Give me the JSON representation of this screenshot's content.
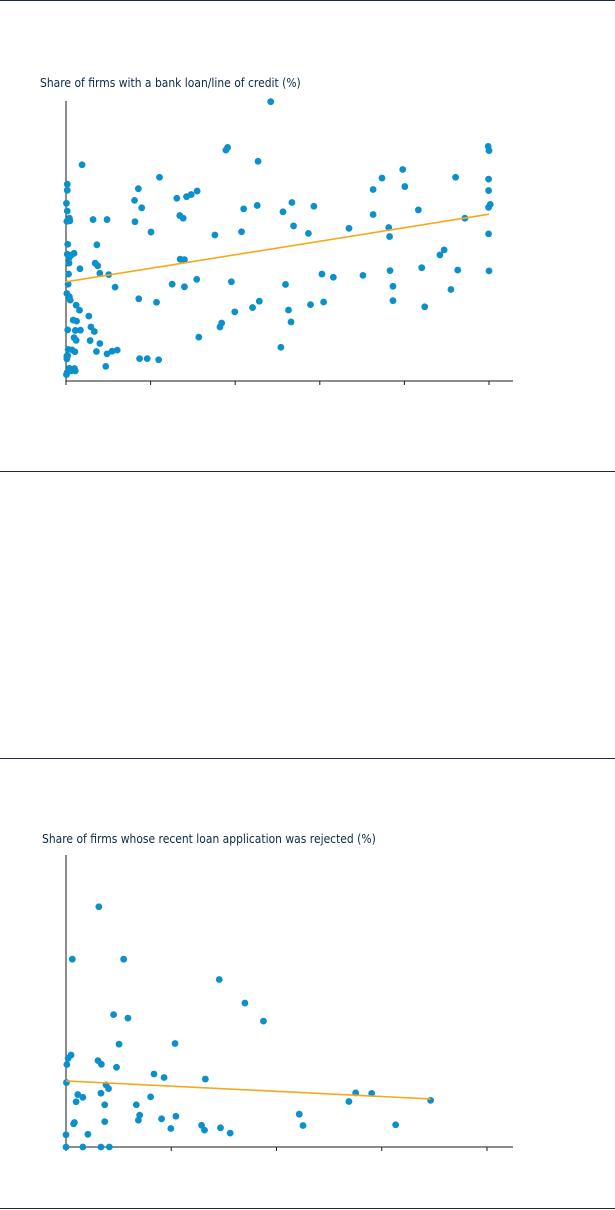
{
  "colors": {
    "point": "#0b90cc",
    "trend": "#f5a81c",
    "axis": "#1a1a1a",
    "rule": "#1f2d3d",
    "title": "#0b2a4a"
  },
  "chart_data": [
    {
      "type": "scatter",
      "title": "Share of firms with a bank loan/line of credit (%)",
      "xlabel": "",
      "ylabel": "",
      "xlim": [
        0,
        100
      ],
      "ylim": [
        0,
        100
      ],
      "grid": false,
      "x_ticks": [
        0,
        20,
        40,
        60,
        80,
        100
      ],
      "points": [
        [
          0.3,
          74
        ],
        [
          0.3,
          71.7
        ],
        [
          0.1,
          66.8
        ],
        [
          0.3,
          63.9
        ],
        [
          0.2,
          60
        ],
        [
          0.8,
          61.2
        ],
        [
          0.9,
          60.2
        ],
        [
          0.4,
          51.4
        ],
        [
          0.3,
          47.7
        ],
        [
          0.7,
          46.2
        ],
        [
          1.2,
          47.3
        ],
        [
          1.9,
          48
        ],
        [
          0.7,
          44.3
        ],
        [
          0.6,
          40.2
        ],
        [
          0.5,
          36.4
        ],
        [
          0.2,
          32.9
        ],
        [
          0.8,
          31.7
        ],
        [
          1,
          30.4
        ],
        [
          2.4,
          28.5
        ],
        [
          3.2,
          26.6
        ],
        [
          1.7,
          22.9
        ],
        [
          2.5,
          22.5
        ],
        [
          0.4,
          19.2
        ],
        [
          2.2,
          19
        ],
        [
          3.4,
          19.1
        ],
        [
          1.9,
          16.3
        ],
        [
          2.4,
          15.3
        ],
        [
          0.5,
          11.9
        ],
        [
          1.4,
          11.7
        ],
        [
          2.1,
          11
        ],
        [
          0.4,
          9.5
        ],
        [
          0.2,
          9.4
        ],
        [
          0.2,
          8.3
        ],
        [
          0.8,
          4.8
        ],
        [
          2,
          4.7
        ],
        [
          1.2,
          3.8
        ],
        [
          2.2,
          3.8
        ],
        [
          0.3,
          3.3
        ],
        [
          0.1,
          2.4
        ],
        [
          3.8,
          81.3
        ],
        [
          3.3,
          42.2
        ],
        [
          6.4,
          60.7
        ],
        [
          9.7,
          60.7
        ],
        [
          7.3,
          51.2
        ],
        [
          6.9,
          44.3
        ],
        [
          7.5,
          43.3
        ],
        [
          8,
          40.5
        ],
        [
          10.1,
          40
        ],
        [
          11.6,
          35.3
        ],
        [
          5.4,
          24.4
        ],
        [
          5.9,
          20.3
        ],
        [
          6.7,
          18.6
        ],
        [
          5.7,
          15.2
        ],
        [
          8,
          14.1
        ],
        [
          9.7,
          10.2
        ],
        [
          7.2,
          11.1
        ],
        [
          9.4,
          5.5
        ],
        [
          10.9,
          11.2
        ],
        [
          12.1,
          11.6
        ],
        [
          16.2,
          67.9
        ],
        [
          17.1,
          72.3
        ],
        [
          17.9,
          65.1
        ],
        [
          22.1,
          76.6
        ],
        [
          16.3,
          59.9
        ],
        [
          20.1,
          56
        ],
        [
          26.9,
          62.2
        ],
        [
          28.5,
          69.3
        ],
        [
          27.7,
          61.2
        ],
        [
          29.6,
          70.1
        ],
        [
          31,
          71.4
        ],
        [
          26.2,
          68.7
        ],
        [
          27,
          45.8
        ],
        [
          28,
          45.6
        ],
        [
          25.1,
          36.4
        ],
        [
          28,
          35.4
        ],
        [
          30.9,
          38.2
        ],
        [
          21.4,
          29.6
        ],
        [
          17.2,
          30.9
        ],
        [
          17.4,
          8.4
        ],
        [
          19.2,
          8.4
        ],
        [
          21.9,
          8
        ],
        [
          31.4,
          16.5
        ],
        [
          35.2,
          54.9
        ],
        [
          36.4,
          20.3
        ],
        [
          36.8,
          21.8
        ],
        [
          37.8,
          86.8
        ],
        [
          38.2,
          87.8
        ],
        [
          39.1,
          37.3
        ],
        [
          39.9,
          26
        ],
        [
          41.5,
          56.1
        ],
        [
          42,
          64.7
        ],
        [
          44.1,
          27.6
        ],
        [
          45.2,
          66
        ],
        [
          45.4,
          82.6
        ],
        [
          45.7,
          30
        ],
        [
          48.4,
          105
        ],
        [
          50.8,
          12.7
        ],
        [
          51.3,
          63.6
        ],
        [
          51.9,
          36.3
        ],
        [
          52.6,
          26.7
        ],
        [
          53.2,
          22.2
        ],
        [
          53.4,
          67.1
        ],
        [
          53.8,
          58.3
        ],
        [
          57.3,
          55.5
        ],
        [
          58.6,
          65.7
        ],
        [
          57.8,
          28.7
        ],
        [
          60.5,
          40.2
        ],
        [
          60.9,
          29.7
        ],
        [
          63.2,
          39
        ],
        [
          66.9,
          57.4
        ],
        [
          70.2,
          39.7
        ],
        [
          72.6,
          62.6
        ],
        [
          72.6,
          72
        ],
        [
          74.7,
          76.3
        ],
        [
          77.3,
          35.6
        ],
        [
          79.6,
          79.5
        ],
        [
          80.1,
          73.1
        ],
        [
          76.3,
          57.7
        ],
        [
          76.5,
          54.3
        ],
        [
          76.6,
          41.5
        ],
        [
          77.3,
          30.2
        ],
        [
          83.3,
          64.3
        ],
        [
          84.1,
          42.6
        ],
        [
          84.8,
          27.9
        ],
        [
          88.4,
          47.4
        ],
        [
          89.4,
          49.3
        ],
        [
          91,
          34.4
        ],
        [
          92.1,
          76.6
        ],
        [
          92.6,
          41.7
        ],
        [
          94.3,
          61.2
        ],
        [
          99.8,
          88.2
        ],
        [
          100,
          86.6
        ],
        [
          99.9,
          75.9
        ],
        [
          99.9,
          71.6
        ],
        [
          100.3,
          66.4
        ],
        [
          99.9,
          65.3
        ],
        [
          99.9,
          55.3
        ],
        [
          100,
          41.4
        ]
      ],
      "trend_line": {
        "x": [
          0,
          100
        ],
        "y": [
          37.3,
          62.7
        ]
      }
    },
    {
      "type": "scatter",
      "title": "Share of firms whose recent loan application was rejected (%)",
      "xlabel": "",
      "ylabel": "",
      "xlim": [
        0,
        100
      ],
      "ylim": [
        0,
        100
      ],
      "grid": false,
      "x_ticks": [
        0,
        25,
        50,
        75,
        100
      ],
      "points": [
        [
          7.8,
          104
        ],
        [
          1.5,
          81.3
        ],
        [
          13.7,
          81.3
        ],
        [
          36.4,
          72.5
        ],
        [
          42.5,
          62.3
        ],
        [
          46.9,
          54.5
        ],
        [
          11.3,
          57.3
        ],
        [
          14.7,
          55.8
        ],
        [
          12.6,
          44.5
        ],
        [
          25.9,
          44.8
        ],
        [
          0.5,
          38.4
        ],
        [
          1.2,
          39.8
        ],
        [
          0.2,
          35.7
        ],
        [
          7.6,
          37.4
        ],
        [
          8.4,
          35.8
        ],
        [
          12,
          34.5
        ],
        [
          20.9,
          31.6
        ],
        [
          23.3,
          30.1
        ],
        [
          33.1,
          29.4
        ],
        [
          0.1,
          27.9
        ],
        [
          9.5,
          26.9
        ],
        [
          10.1,
          25.3
        ],
        [
          8.3,
          23.3
        ],
        [
          4,
          21.5
        ],
        [
          20.1,
          21.7
        ],
        [
          2.4,
          19.6
        ],
        [
          9.2,
          18.3
        ],
        [
          2.8,
          22.7
        ],
        [
          16.7,
          18.3
        ],
        [
          68.8,
          23.4
        ],
        [
          72.6,
          23.2
        ],
        [
          67.2,
          19.7
        ],
        [
          86.6,
          20.2
        ],
        [
          55.4,
          14.2
        ],
        [
          17.5,
          13.8
        ],
        [
          17.2,
          11.6
        ],
        [
          22.7,
          12.2
        ],
        [
          26.1,
          13.3
        ],
        [
          2,
          10.6
        ],
        [
          9.2,
          11
        ],
        [
          32.2,
          9.4
        ],
        [
          32.9,
          7.3
        ],
        [
          36.7,
          8.3
        ],
        [
          39,
          6
        ],
        [
          24.9,
          8
        ],
        [
          56.3,
          9.3
        ],
        [
          78.3,
          9.6
        ],
        [
          1.8,
          10
        ],
        [
          5.2,
          5.5
        ],
        [
          0,
          5.3
        ],
        [
          0,
          0
        ],
        [
          4,
          0
        ],
        [
          8.3,
          0
        ],
        [
          10.3,
          0
        ]
      ],
      "trend_line": {
        "x": [
          0,
          86.6
        ],
        "y": [
          28.6,
          20.8
        ]
      }
    }
  ]
}
